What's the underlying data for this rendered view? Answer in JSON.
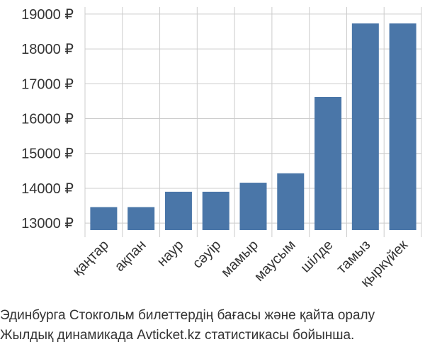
{
  "chart_data": {
    "type": "bar",
    "categories": [
      "қаңтар",
      "ақпан",
      "наур",
      "сәуір",
      "мамыр",
      "маусым",
      "шілде",
      "тамыз",
      "қыркүйек"
    ],
    "values": [
      13460,
      13460,
      13900,
      13900,
      14160,
      14430,
      16620,
      18730,
      18730
    ],
    "ylim": [
      12800,
      19200
    ],
    "yticks": [
      13000,
      14000,
      15000,
      16000,
      17000,
      18000,
      19000
    ],
    "ytick_labels": [
      "13000 ₽",
      "14000 ₽",
      "15000 ₽",
      "16000 ₽",
      "17000 ₽",
      "18000 ₽",
      "19000 ₽"
    ],
    "bar_color": "#4a76a8",
    "grid": true,
    "title": "",
    "xlabel": "",
    "ylabel": ""
  },
  "caption": {
    "line1": "Эдинбурга Стокгольм билеттердің бағасы және қайта оралу",
    "line2": "Жылдық динамикада Avticket.kz статистикасы бойынша."
  }
}
